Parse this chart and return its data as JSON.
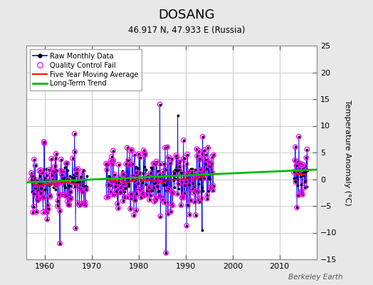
{
  "title": "DOSANG",
  "subtitle": "46.917 N, 47.933 E (Russia)",
  "ylabel": "Temperature Anomaly (°C)",
  "watermark": "Berkeley Earth",
  "xlim": [
    1956,
    2018
  ],
  "ylim": [
    -15,
    25
  ],
  "yticks": [
    -15,
    -10,
    -5,
    0,
    5,
    10,
    15,
    20,
    25
  ],
  "xticks": [
    1960,
    1970,
    1980,
    1990,
    2000,
    2010
  ],
  "fig_bg_color": "#e8e8e8",
  "plot_bg_color": "#ffffff",
  "grid_color": "#cccccc",
  "raw_line_color": "#0000ff",
  "raw_dot_color": "#000000",
  "qc_fail_color": "#ff00ff",
  "moving_avg_color": "#ff0000",
  "trend_color": "#00bb00",
  "trend_line_x": [
    1956,
    2018
  ],
  "trend_line_y": [
    -0.6,
    1.8
  ],
  "year_ranges": [
    [
      1957,
      1968
    ],
    [
      1973,
      1995
    ],
    [
      2013,
      2015
    ]
  ]
}
